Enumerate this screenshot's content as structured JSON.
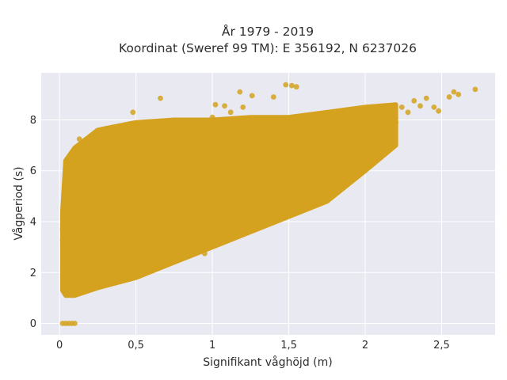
{
  "chart_data": {
    "type": "scatter",
    "title_line1": "År 1979 - 2019",
    "title_line2": "Koordinat (Sweref 99 TM): E 356192, N 6237026",
    "xlabel": "Signifikant våghöjd (m)",
    "ylabel": "Vågperiod (s)",
    "xlim": [
      -0.12,
      2.85
    ],
    "ylim": [
      -0.45,
      9.85
    ],
    "x_ticks": [
      0,
      0.5,
      1,
      1.5,
      2,
      2.5
    ],
    "x_tick_labels": [
      "0",
      "0,5",
      "1",
      "1,5",
      "2",
      "2,5"
    ],
    "y_ticks": [
      0,
      2,
      4,
      6,
      8
    ],
    "y_tick_labels": [
      "0",
      "2",
      "4",
      "6",
      "8"
    ],
    "grid": true,
    "legend": "none",
    "marker_color": "#d4a21f",
    "background_color": "#e9e9f2",
    "points": [
      [
        0.02,
        0
      ],
      [
        0.04,
        0
      ],
      [
        0.06,
        0
      ],
      [
        0.08,
        0
      ],
      [
        0.1,
        0
      ],
      [
        0.13,
        7.25
      ],
      [
        0.26,
        6.9
      ],
      [
        0.48,
        8.3
      ],
      [
        0.66,
        8.85
      ],
      [
        1.02,
        8.6
      ],
      [
        1.08,
        8.55
      ],
      [
        1.18,
        9.1
      ],
      [
        1.26,
        8.95
      ],
      [
        1.4,
        8.9
      ],
      [
        1.48,
        9.38
      ],
      [
        1.52,
        9.35
      ],
      [
        1.55,
        9.3
      ],
      [
        1.3,
        7.95
      ],
      [
        1.5,
        7.6
      ],
      [
        1.62,
        7.3
      ],
      [
        1.72,
        7.5
      ],
      [
        1.8,
        7.8
      ],
      [
        1.88,
        8.0
      ],
      [
        1.95,
        7.95
      ],
      [
        2.02,
        8.1
      ],
      [
        2.1,
        8.2
      ],
      [
        2.16,
        8.35
      ],
      [
        2.2,
        7.9
      ],
      [
        2.24,
        8.5
      ],
      [
        2.28,
        8.3
      ],
      [
        2.32,
        8.75
      ],
      [
        2.36,
        8.55
      ],
      [
        2.4,
        8.85
      ],
      [
        2.45,
        8.5
      ],
      [
        2.48,
        8.35
      ],
      [
        2.55,
        8.9
      ],
      [
        2.58,
        9.1
      ],
      [
        2.61,
        9.0
      ],
      [
        2.72,
        9.2
      ],
      [
        2.1,
        6.75
      ],
      [
        1.95,
        7.2
      ],
      [
        1.85,
        7.05
      ],
      [
        1.7,
        7.1
      ],
      [
        1.58,
        5.2
      ],
      [
        1.6,
        5.1
      ],
      [
        1.55,
        5.3
      ],
      [
        1.45,
        5.15
      ],
      [
        1.38,
        5.0
      ],
      [
        1.3,
        5.1
      ],
      [
        1.2,
        4.9
      ],
      [
        1.1,
        4.7
      ],
      [
        1.0,
        4.65
      ],
      [
        0.92,
        4.5
      ],
      [
        0.85,
        4.6
      ],
      [
        0.78,
        4.8
      ],
      [
        0.72,
        3.2
      ],
      [
        0.65,
        3.0
      ],
      [
        0.6,
        3.1
      ],
      [
        0.85,
        2.65
      ],
      [
        0.8,
        2.6
      ],
      [
        0.95,
        2.75
      ],
      [
        0.35,
        2.45
      ],
      [
        0.5,
        2.3
      ],
      [
        0.2,
        1.9
      ],
      [
        0.12,
        1.6
      ],
      [
        0.1,
        1.2
      ],
      [
        0.08,
        1.3
      ],
      [
        0.05,
        1.4
      ],
      [
        0.04,
        1.7
      ],
      [
        0.03,
        2.0
      ],
      [
        0.02,
        3.7
      ],
      [
        0.02,
        3.3
      ],
      [
        0.05,
        4.5
      ],
      [
        0.06,
        5.1
      ],
      [
        0.07,
        5.9
      ],
      [
        0.09,
        5.8
      ],
      [
        0.12,
        6.3
      ],
      [
        0.15,
        6.0
      ],
      [
        0.18,
        6.6
      ],
      [
        0.22,
        6.8
      ],
      [
        0.3,
        7.0
      ],
      [
        0.4,
        7.2
      ],
      [
        0.55,
        7.4
      ],
      [
        0.7,
        7.7
      ],
      [
        0.85,
        7.9
      ],
      [
        1.0,
        8.1
      ],
      [
        1.12,
        8.3
      ],
      [
        1.2,
        8.5
      ],
      [
        0.9,
        4.1
      ],
      [
        1.12,
        4.3
      ],
      [
        1.25,
        4.5
      ],
      [
        1.4,
        4.7
      ],
      [
        1.5,
        4.8
      ],
      [
        1.7,
        5.5
      ],
      [
        1.65,
        6.2
      ],
      [
        1.75,
        6.4
      ],
      [
        1.82,
        6.6
      ],
      [
        1.9,
        6.9
      ],
      [
        2.0,
        7.4
      ]
    ],
    "bands": [
      {
        "x": [
          0.02,
          0.04,
          0.1,
          0.25,
          0.5,
          0.75,
          1.0,
          1.25,
          1.5,
          1.75,
          2.0,
          2.2
        ],
        "ylo": [
          1.3,
          1.1,
          1.1,
          1.4,
          1.8,
          2.4,
          3.0,
          3.6,
          4.2,
          4.8,
          6.0,
          7.0
        ],
        "yhi": [
          4.4,
          6.4,
          6.9,
          7.6,
          7.9,
          8.0,
          8.0,
          8.1,
          8.1,
          8.3,
          8.5,
          8.6
        ]
      },
      {
        "x": [
          0.03,
          0.1,
          0.3,
          0.5,
          0.75,
          0.95
        ],
        "ylo": [
          2.0,
          1.6,
          1.9,
          2.3,
          2.8,
          3.4
        ],
        "yhi": [
          2.6,
          2.3,
          2.7,
          3.1,
          3.5,
          3.9
        ]
      }
    ]
  }
}
